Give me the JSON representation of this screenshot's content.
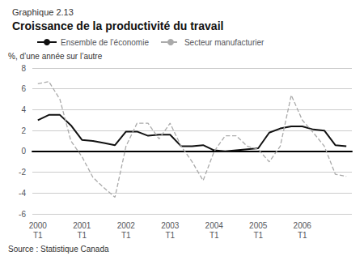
{
  "chart_data": {
    "type": "line",
    "subtitle": "Graphique 2.13",
    "title": "Croissance de la productivité du travail",
    "ylabel": "%, d’une année sur l’autre",
    "annotations": [
      "Source : Statistique Canada"
    ],
    "categories": [
      "2000\nT1",
      null,
      null,
      null,
      "2001\nT1",
      null,
      null,
      null,
      "2002\nT1",
      null,
      null,
      null,
      "2003\nT1",
      null,
      null,
      null,
      "2004\nT1",
      null,
      null,
      null,
      "2005\nT1",
      null,
      null,
      null,
      "2006\nT1",
      null,
      null,
      null,
      null
    ],
    "series": [
      {
        "name": "Ensemble de l’économie",
        "color": "#111111",
        "line_style": "solid",
        "values": [
          3.0,
          3.5,
          3.5,
          2.5,
          1.1,
          1.0,
          0.8,
          0.6,
          1.9,
          1.9,
          1.5,
          1.6,
          1.6,
          0.5,
          0.5,
          0.6,
          0.1,
          0.0,
          0.1,
          0.2,
          0.3,
          1.8,
          2.2,
          2.4,
          2.4,
          2.1,
          2.0,
          0.6,
          0.5
        ]
      },
      {
        "name": "Secteur manufacturier",
        "color": "#aaaaaa",
        "line_style": "dashed",
        "values": [
          6.5,
          6.7,
          5.0,
          1.0,
          -0.5,
          -2.5,
          -3.5,
          -4.4,
          0.5,
          2.7,
          2.7,
          1.2,
          2.7,
          0.5,
          -1.0,
          -2.8,
          0.0,
          1.5,
          1.5,
          0.5,
          0.2,
          -1.0,
          0.5,
          5.4,
          3.0,
          1.8,
          0.5,
          -2.2,
          -2.4
        ]
      }
    ],
    "ylim": [
      -6,
      8
    ],
    "yticks": [
      -6,
      -4,
      -2,
      0,
      2,
      4,
      6,
      8
    ],
    "grid": true,
    "legend": "upper left"
  }
}
